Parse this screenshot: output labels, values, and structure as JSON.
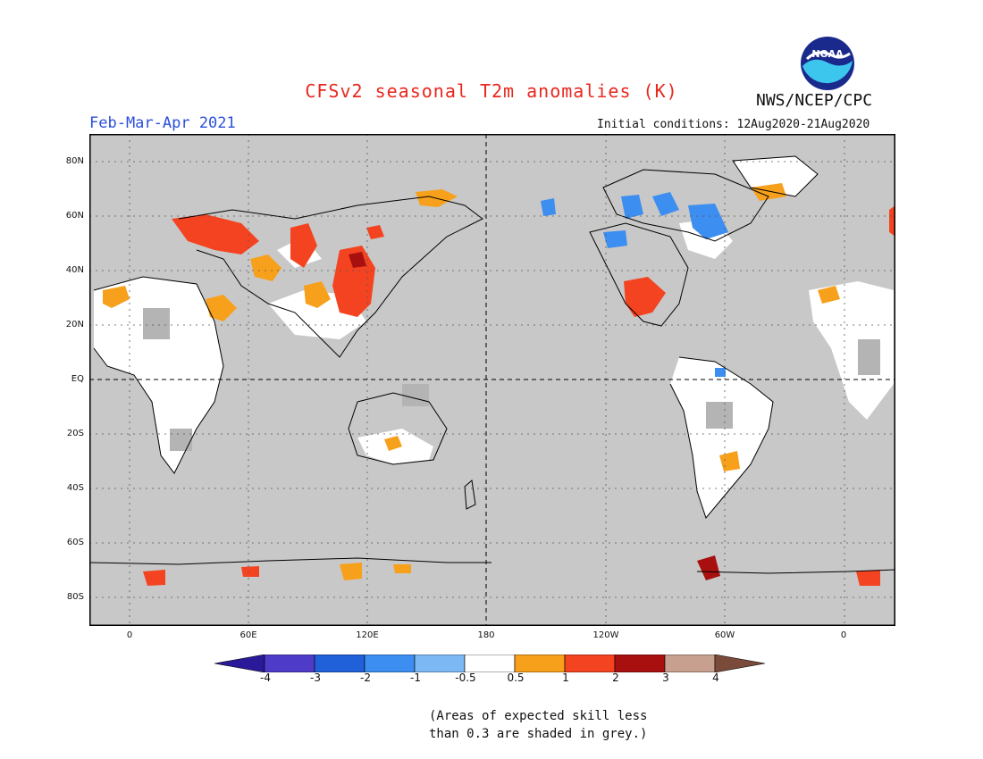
{
  "title": "CFSv2 seasonal T2m anomalies (K)",
  "period": "Feb-Mar-Apr 2021",
  "initial_conditions": "Initial conditions: 12Aug2020-21Aug2020",
  "agency": "NWS/NCEP/CPC",
  "logo_text": "NOAA",
  "map": {
    "projection": "equirectangular, centered on 180",
    "background_color": "#c8c8c8",
    "y_ticks": [
      "80N",
      "60N",
      "40N",
      "20N",
      "EQ",
      "20S",
      "40S",
      "60S",
      "80S"
    ],
    "x_ticks": [
      "0",
      "60E",
      "120E",
      "180",
      "120W",
      "60W",
      "0"
    ]
  },
  "colorbar": {
    "labels": [
      "-4",
      "-3",
      "-2",
      "-1",
      "-0.5",
      "0.5",
      "1",
      "2",
      "3",
      "4"
    ],
    "colors": [
      "#2a1a9a",
      "#4e3cc8",
      "#2060d8",
      "#3c8ef0",
      "#7cb8f4",
      "#ffffff",
      "#f7a01b",
      "#f44320",
      "#a81010",
      "#c8a090",
      "#7a4a3a"
    ]
  },
  "note_line1": "(Areas of expected skill less",
  "note_line2": "than 0.3 are shaded in grey.)"
}
